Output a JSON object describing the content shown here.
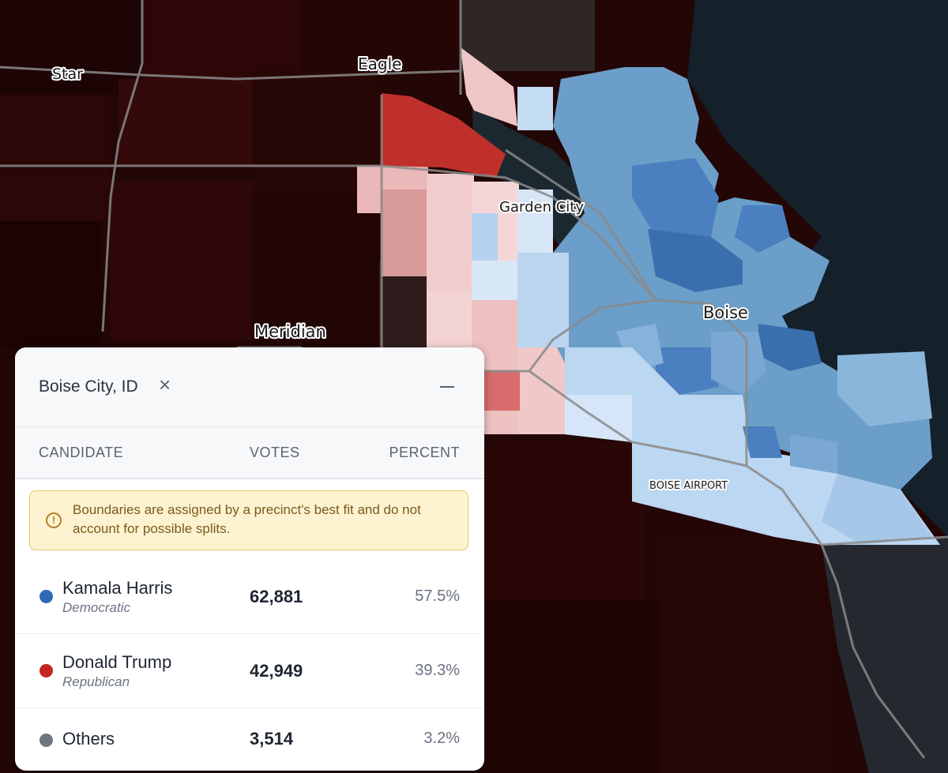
{
  "map": {
    "place_labels": {
      "star": "Star",
      "eagle": "Eagle",
      "garden_city": "Garden City",
      "boise": "Boise",
      "meridian": "Meridian",
      "boise_airport": "BOISE AIRPORT"
    },
    "colors": {
      "strong_republican": "#2a0505",
      "republican": "#c0302a",
      "light_republican": "#efc6c6",
      "light_democratic": "#bcd7f2",
      "democratic": "#6b9ec8",
      "strong_democratic": "#3a6fae",
      "no_data": "#1a252d"
    }
  },
  "panel": {
    "title": "Boise City, ID",
    "columns": {
      "candidate": "CANDIDATE",
      "votes": "VOTES",
      "percent": "PERCENT"
    },
    "notice": "Boundaries are assigned by a precinct's best fit and do not account for possible splits.",
    "rows": [
      {
        "name": "Kamala Harris",
        "party": "Democratic",
        "votes": "62,881",
        "percent": "57.5%",
        "color": "#2f6bb5"
      },
      {
        "name": "Donald Trump",
        "party": "Republican",
        "votes": "42,949",
        "percent": "39.3%",
        "color": "#c4271f"
      },
      {
        "name": "Others",
        "party": "",
        "votes": "3,514",
        "percent": "3.2%",
        "color": "#6f7680"
      }
    ]
  }
}
